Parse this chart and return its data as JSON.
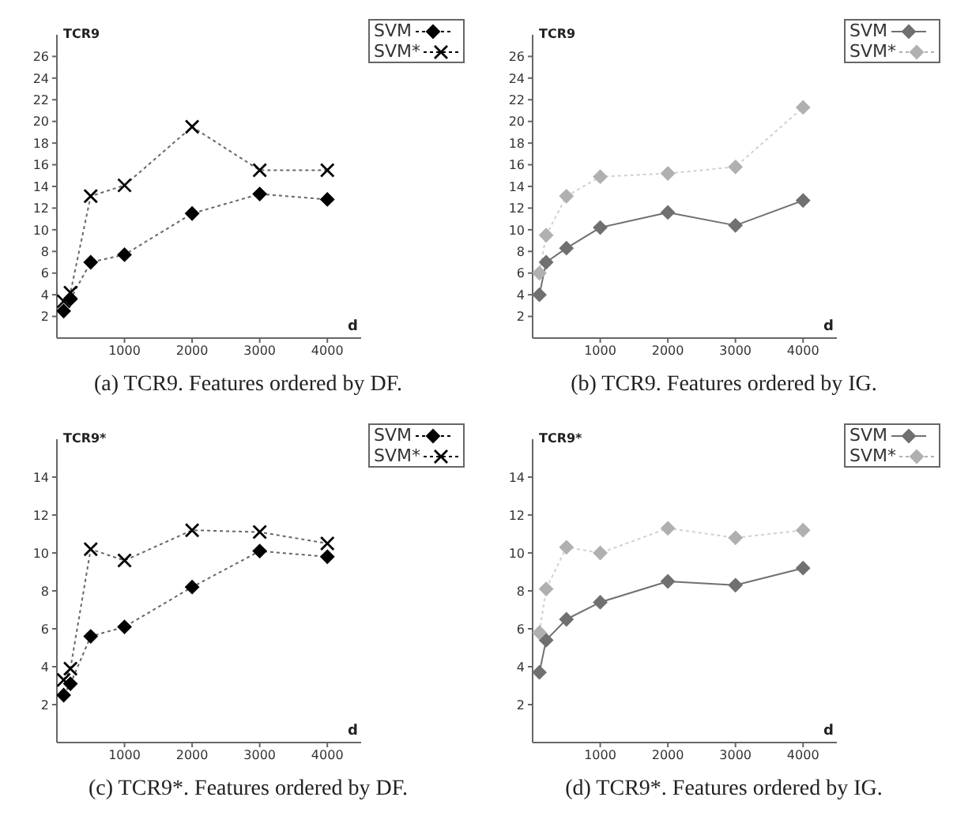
{
  "chart_data": [
    {
      "type": "line",
      "title": "(a) TCR9. Features ordered by DF.",
      "ylabel": "TCR9",
      "xlabel": "d",
      "x": [
        100,
        200,
        500,
        1000,
        2000,
        3000,
        4000
      ],
      "xlim": [
        0,
        4500
      ],
      "xticks": [
        1000,
        2000,
        3000,
        4000
      ],
      "ylim": [
        0,
        28
      ],
      "yticks": [
        2,
        4,
        6,
        8,
        10,
        12,
        14,
        16,
        18,
        20,
        22,
        24,
        26
      ],
      "grid": false,
      "legend": "top right",
      "series": [
        {
          "name": "SVM",
          "color": "#000000",
          "marker": "diamond",
          "line_style": "dotted",
          "values": [
            2.5,
            3.6,
            7.0,
            7.7,
            11.5,
            13.3,
            12.8
          ]
        },
        {
          "name": "SVM*",
          "color": "#000000",
          "marker": "cross",
          "line_style": "dotted",
          "values": [
            3.4,
            4.2,
            13.1,
            14.1,
            19.5,
            15.5,
            15.5
          ]
        }
      ]
    },
    {
      "type": "line",
      "title": "(b) TCR9. Features ordered by IG.",
      "ylabel": "TCR9",
      "xlabel": "d",
      "x": [
        100,
        200,
        500,
        1000,
        2000,
        3000,
        4000
      ],
      "xlim": [
        0,
        4500
      ],
      "xticks": [
        1000,
        2000,
        3000,
        4000
      ],
      "ylim": [
        0,
        28
      ],
      "yticks": [
        2,
        4,
        6,
        8,
        10,
        12,
        14,
        16,
        18,
        20,
        22,
        24,
        26
      ],
      "grid": false,
      "legend": "top right",
      "series": [
        {
          "name": "SVM",
          "color": "#707070",
          "marker": "diamond",
          "line_style": "solid",
          "values": [
            4.0,
            7.0,
            8.3,
            10.2,
            11.6,
            10.4,
            12.7
          ]
        },
        {
          "name": "SVM*",
          "color": "#b0b0b0",
          "marker": "diamond",
          "line_style": "dotted",
          "values": [
            6.0,
            9.5,
            13.1,
            14.9,
            15.2,
            15.8,
            21.3
          ]
        }
      ]
    },
    {
      "type": "line",
      "title": "(c) TCR9*. Features ordered by DF.",
      "ylabel": "TCR9*",
      "xlabel": "d",
      "x": [
        100,
        200,
        500,
        1000,
        2000,
        3000,
        4000
      ],
      "xlim": [
        0,
        4500
      ],
      "xticks": [
        1000,
        2000,
        3000,
        4000
      ],
      "ylim": [
        0,
        16
      ],
      "yticks": [
        2,
        4,
        6,
        8,
        10,
        12,
        14
      ],
      "grid": false,
      "legend": "top right",
      "series": [
        {
          "name": "SVM",
          "color": "#000000",
          "marker": "diamond",
          "line_style": "dotted",
          "values": [
            2.5,
            3.1,
            5.6,
            6.1,
            8.2,
            10.1,
            9.8
          ]
        },
        {
          "name": "SVM*",
          "color": "#000000",
          "marker": "cross",
          "line_style": "dotted",
          "values": [
            3.3,
            3.9,
            10.2,
            9.6,
            11.2,
            11.1,
            10.5
          ]
        }
      ]
    },
    {
      "type": "line",
      "title": "(d) TCR9*. Features ordered by IG.",
      "ylabel": "TCR9*",
      "xlabel": "d",
      "x": [
        100,
        200,
        500,
        1000,
        2000,
        3000,
        4000
      ],
      "xlim": [
        0,
        4500
      ],
      "xticks": [
        1000,
        2000,
        3000,
        4000
      ],
      "ylim": [
        0,
        16
      ],
      "yticks": [
        2,
        4,
        6,
        8,
        10,
        12,
        14
      ],
      "grid": false,
      "legend": "top right",
      "series": [
        {
          "name": "SVM",
          "color": "#707070",
          "marker": "diamond",
          "line_style": "solid",
          "values": [
            3.7,
            5.4,
            6.5,
            7.4,
            8.5,
            8.3,
            9.2
          ]
        },
        {
          "name": "SVM*",
          "color": "#b0b0b0",
          "marker": "diamond",
          "line_style": "dotted",
          "values": [
            5.8,
            8.1,
            10.3,
            10.0,
            11.3,
            10.8,
            11.2
          ]
        }
      ]
    }
  ]
}
